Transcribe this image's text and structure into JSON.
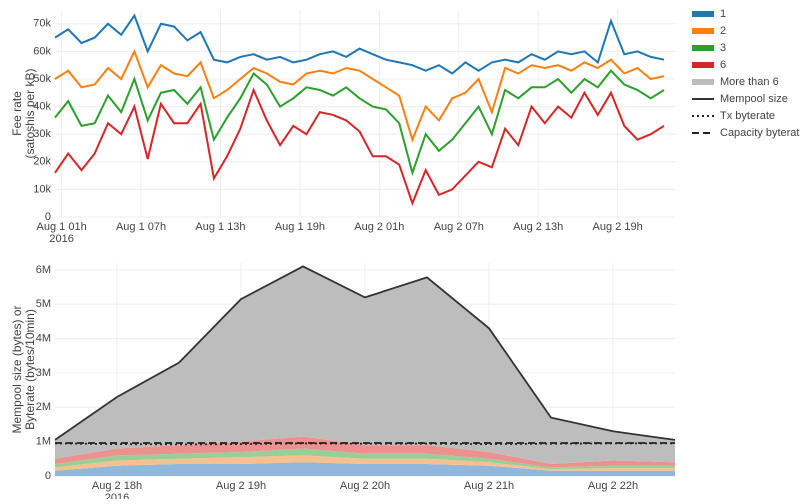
{
  "chart_data": [
    {
      "type": "line",
      "y_label": [
        "Fee rate",
        "(satoshis per kB)"
      ],
      "x_year_label": "2016",
      "x": [
        "2016-08-01T00:30",
        "2016-08-01T01:30",
        "2016-08-01T02:30",
        "2016-08-01T03:30",
        "2016-08-01T04:30",
        "2016-08-01T05:30",
        "2016-08-01T06:30",
        "2016-08-01T07:30",
        "2016-08-01T08:30",
        "2016-08-01T09:30",
        "2016-08-01T10:30",
        "2016-08-01T11:30",
        "2016-08-01T12:30",
        "2016-08-01T13:30",
        "2016-08-01T14:30",
        "2016-08-01T15:30",
        "2016-08-01T16:30",
        "2016-08-01T17:30",
        "2016-08-01T18:30",
        "2016-08-01T19:30",
        "2016-08-01T20:30",
        "2016-08-01T21:30",
        "2016-08-01T22:30",
        "2016-08-01T23:30",
        "2016-08-02T00:30",
        "2016-08-02T01:30",
        "2016-08-02T02:30",
        "2016-08-02T03:30",
        "2016-08-02T04:30",
        "2016-08-02T05:30",
        "2016-08-02T06:30",
        "2016-08-02T07:30",
        "2016-08-02T08:30",
        "2016-08-02T09:30",
        "2016-08-02T10:30",
        "2016-08-02T11:30",
        "2016-08-02T12:30",
        "2016-08-02T13:30",
        "2016-08-02T14:30",
        "2016-08-02T15:30",
        "2016-08-02T16:30",
        "2016-08-02T17:30",
        "2016-08-02T18:30",
        "2016-08-02T19:30",
        "2016-08-02T20:30",
        "2016-08-02T21:30",
        "2016-08-02T22:30"
      ],
      "xlim": [
        "2016-08-01T00:30",
        "2016-08-02T23:20"
      ],
      "xticks": [
        {
          "value": "2016-08-01T01:00",
          "label": "Aug 1 01h"
        },
        {
          "value": "2016-08-01T07:00",
          "label": "Aug 1 07h"
        },
        {
          "value": "2016-08-01T13:00",
          "label": "Aug 1 13h"
        },
        {
          "value": "2016-08-01T19:00",
          "label": "Aug 1 19h"
        },
        {
          "value": "2016-08-02T01:00",
          "label": "Aug 2 01h"
        },
        {
          "value": "2016-08-02T07:00",
          "label": "Aug 2 07h"
        },
        {
          "value": "2016-08-02T13:00",
          "label": "Aug 2 13h"
        },
        {
          "value": "2016-08-02T19:00",
          "label": "Aug 2 19h"
        }
      ],
      "ylim": [
        0,
        75000
      ],
      "yticks": [
        0,
        {
          "value": 10000,
          "label": "10k"
        },
        {
          "value": 20000,
          "label": "20k"
        },
        {
          "value": 30000,
          "label": "30k"
        },
        {
          "value": 40000,
          "label": "40k"
        },
        {
          "value": 50000,
          "label": "50k"
        },
        {
          "value": 60000,
          "label": "60k"
        },
        {
          "value": 70000,
          "label": "70k"
        }
      ],
      "grid": true,
      "series": [
        {
          "color": "#1f77b4",
          "values": [
            65000,
            68000,
            63000,
            65000,
            70000,
            66000,
            73000,
            60000,
            70000,
            69000,
            64000,
            67000,
            57000,
            56000,
            58000,
            59000,
            57000,
            58000,
            56000,
            57000,
            59000,
            60000,
            58000,
            61000,
            59000,
            57000,
            56000,
            55000,
            53000,
            55000,
            52000,
            56000,
            53000,
            56000,
            57000,
            56000,
            59000,
            57000,
            60000,
            59000,
            60000,
            56000,
            71000,
            59000,
            60000,
            58000,
            57000
          ]
        },
        {
          "color": "#ff7f0e",
          "values": [
            50000,
            53000,
            47000,
            48000,
            54000,
            50000,
            60000,
            47000,
            55000,
            52000,
            51000,
            56000,
            43000,
            46000,
            50000,
            54000,
            52000,
            49000,
            48000,
            52000,
            53000,
            52000,
            54000,
            53000,
            50000,
            47000,
            44000,
            28000,
            40000,
            35000,
            43000,
            45000,
            50000,
            38000,
            54000,
            52000,
            55000,
            54000,
            55000,
            53000,
            56000,
            54000,
            57000,
            52000,
            54000,
            50000,
            51000
          ]
        },
        {
          "color": "#2ca02c",
          "values": [
            36000,
            42000,
            33000,
            34000,
            44000,
            38000,
            50000,
            35000,
            45000,
            46000,
            41000,
            47000,
            28000,
            36000,
            43000,
            52000,
            48000,
            40000,
            43000,
            47000,
            46000,
            44000,
            47000,
            43000,
            40000,
            39000,
            34000,
            16000,
            30000,
            24000,
            28000,
            34000,
            40000,
            30000,
            46000,
            43000,
            47000,
            47000,
            50000,
            45000,
            50000,
            47000,
            53000,
            48000,
            46000,
            43000,
            46000
          ]
        },
        {
          "color": "#d62728",
          "values": [
            16000,
            23000,
            17000,
            23000,
            34000,
            30000,
            40000,
            21000,
            41000,
            34000,
            34000,
            41000,
            14000,
            22000,
            32000,
            46000,
            35000,
            26000,
            33000,
            30000,
            38000,
            37000,
            35000,
            31000,
            22000,
            22000,
            19000,
            5000,
            17000,
            8000,
            10000,
            15000,
            20000,
            18000,
            32000,
            26000,
            40000,
            34000,
            40000,
            36000,
            45000,
            37000,
            45000,
            33000,
            28000,
            30000,
            33000
          ]
        }
      ]
    },
    {
      "type": "stacked_area",
      "y_label": [
        "Mempool size (bytes) or",
        "Byterate (bytes/10min)"
      ],
      "x_year_label": "2016",
      "x": [
        "2016-08-02T17:30",
        "2016-08-02T18:00",
        "2016-08-02T18:30",
        "2016-08-02T19:00",
        "2016-08-02T19:30",
        "2016-08-02T20:00",
        "2016-08-02T20:30",
        "2016-08-02T21:00",
        "2016-08-02T21:30",
        "2016-08-02T22:00",
        "2016-08-02T22:30"
      ],
      "xlim": [
        "2016-08-02T17:30",
        "2016-08-02T22:30"
      ],
      "xticks": [
        {
          "value": "2016-08-02T18:00",
          "label": "Aug 2 18h"
        },
        {
          "value": "2016-08-02T19:00",
          "label": "Aug 2 19h"
        },
        {
          "value": "2016-08-02T20:00",
          "label": "Aug 2 20h"
        },
        {
          "value": "2016-08-02T21:00",
          "label": "Aug 2 21h"
        },
        {
          "value": "2016-08-02T22:00",
          "label": "Aug 2 22h"
        }
      ],
      "ylim": [
        0,
        6200000
      ],
      "yticks": [
        0,
        {
          "value": 1000000,
          "label": "1M"
        },
        {
          "value": 2000000,
          "label": "2M"
        },
        {
          "value": 3000000,
          "label": "3M"
        },
        {
          "value": 4000000,
          "label": "4M"
        },
        {
          "value": 5000000,
          "label": "5M"
        },
        {
          "value": 6000000,
          "label": "6M"
        }
      ],
      "grid": true,
      "series": [
        {
          "name": "1",
          "kind": "area",
          "color": "#8fb8dc",
          "values": [
            150000,
            300000,
            350000,
            350000,
            400000,
            350000,
            350000,
            300000,
            150000,
            150000,
            150000
          ]
        },
        {
          "name": "2",
          "kind": "area",
          "color": "#f9c08f",
          "values": [
            100000,
            150000,
            150000,
            200000,
            200000,
            150000,
            150000,
            100000,
            50000,
            80000,
            80000
          ]
        },
        {
          "name": "3",
          "kind": "area",
          "color": "#98cf98",
          "values": [
            100000,
            150000,
            150000,
            150000,
            200000,
            150000,
            150000,
            100000,
            50000,
            70000,
            70000
          ]
        },
        {
          "name": "6",
          "kind": "area",
          "color": "#ec9090",
          "values": [
            150000,
            200000,
            250000,
            300000,
            350000,
            250000,
            250000,
            200000,
            100000,
            150000,
            100000
          ]
        },
        {
          "name": "More than 6",
          "kind": "area",
          "color": "#bdbdbd",
          "values": [
            550000,
            1500000,
            2400000,
            4150000,
            4950000,
            4300000,
            4880000,
            3600000,
            1350000,
            850000,
            650000
          ]
        },
        {
          "name": "Mempool size",
          "kind": "line",
          "dash": "solid",
          "color": "#333333",
          "values": [
            1050000,
            2300000,
            3300000,
            5150000,
            6100000,
            5200000,
            5780000,
            4300000,
            1700000,
            1300000,
            1050000
          ]
        },
        {
          "name": "Tx byterate",
          "kind": "line",
          "dash": "dotted",
          "color": "#222222",
          "values": [
            950000,
            930000,
            920000,
            930000,
            950000,
            940000,
            940000,
            930000,
            940000,
            950000,
            950000
          ]
        },
        {
          "name": "Capacity byterate",
          "kind": "line",
          "dash": "dashed",
          "color": "#222222",
          "values": [
            960000,
            960000,
            960000,
            960000,
            960000,
            960000,
            960000,
            960000,
            960000,
            960000,
            960000
          ]
        }
      ]
    }
  ]
}
